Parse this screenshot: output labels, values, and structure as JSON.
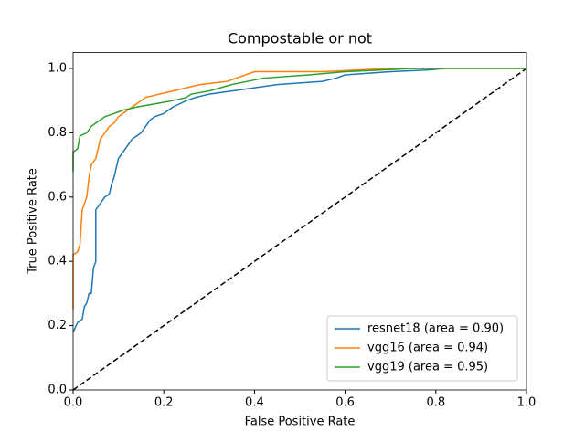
{
  "chart_data": {
    "type": "line",
    "title": "Compostable or not",
    "x_label": "False Positive Rate",
    "y_label": "True Positive Rate",
    "xlim": [
      0,
      1
    ],
    "ylim": [
      0,
      1.05
    ],
    "xticks": [
      {
        "value": 0,
        "label": "0.0"
      },
      {
        "value": 0.2,
        "label": "0.2"
      },
      {
        "value": 0.4,
        "label": "0.4"
      },
      {
        "value": 0.6,
        "label": "0.6"
      },
      {
        "value": 0.8,
        "label": "0.8"
      },
      {
        "value": 1,
        "label": "1.0"
      }
    ],
    "yticks": [
      {
        "value": 0,
        "label": "0.0"
      },
      {
        "value": 0.2,
        "label": "0.2"
      },
      {
        "value": 0.4,
        "label": "0.4"
      },
      {
        "value": 0.6,
        "label": "0.6"
      },
      {
        "value": 0.8,
        "label": "0.8"
      },
      {
        "value": 1,
        "label": "1.0"
      }
    ],
    "legend": "lower right",
    "diagonal": {
      "x": [
        0,
        1
      ],
      "values": [
        0,
        1
      ],
      "color": "#000000"
    },
    "series": [
      {
        "name": "resnet18 (area = 0.90)",
        "color": "#1f77b4",
        "x": [
          0,
          0.01,
          0.02,
          0.025,
          0.03,
          0.035,
          0.04,
          0.045,
          0.05,
          0.05,
          0.06,
          0.07,
          0.08,
          0.085,
          0.09,
          0.095,
          0.1,
          0.11,
          0.12,
          0.13,
          0.14,
          0.15,
          0.16,
          0.17,
          0.18,
          0.2,
          0.22,
          0.25,
          0.27,
          0.3,
          0.35,
          0.4,
          0.45,
          0.55,
          0.58,
          0.6,
          0.7,
          0.78,
          0.82
        ],
        "values": [
          0.18,
          0.21,
          0.22,
          0.26,
          0.27,
          0.3,
          0.3,
          0.38,
          0.4,
          0.56,
          0.58,
          0.6,
          0.61,
          0.64,
          0.66,
          0.69,
          0.72,
          0.74,
          0.76,
          0.78,
          0.79,
          0.8,
          0.82,
          0.84,
          0.85,
          0.86,
          0.88,
          0.9,
          0.91,
          0.92,
          0.93,
          0.94,
          0.95,
          0.96,
          0.97,
          0.98,
          0.99,
          0.995,
          1.0
        ]
      },
      {
        "name": "vgg16 (area = 0.94)",
        "color": "#ff7f0e",
        "x": [
          0,
          0,
          0.01,
          0.015,
          0.02,
          0.03,
          0.035,
          0.04,
          0.05,
          0.055,
          0.06,
          0.07,
          0.08,
          0.09,
          0.1,
          0.12,
          0.14,
          0.16,
          0.19,
          0.22,
          0.25,
          0.28,
          0.34,
          0.4,
          0.55,
          0.7,
          1
        ],
        "values": [
          0.25,
          0.42,
          0.43,
          0.45,
          0.56,
          0.6,
          0.66,
          0.7,
          0.72,
          0.75,
          0.78,
          0.8,
          0.82,
          0.83,
          0.85,
          0.87,
          0.89,
          0.91,
          0.92,
          0.93,
          0.94,
          0.95,
          0.96,
          0.99,
          0.99,
          1.0,
          1.0
        ]
      },
      {
        "name": "vgg19 (area = 0.95)",
        "color": "#2ca02c",
        "x": [
          0,
          0,
          0.01,
          0.015,
          0.03,
          0.04,
          0.05,
          0.06,
          0.07,
          0.09,
          0.11,
          0.14,
          0.18,
          0.22,
          0.25,
          0.26,
          0.3,
          0.35,
          0.42,
          0.52,
          0.6,
          0.75,
          1
        ],
        "values": [
          0.68,
          0.74,
          0.75,
          0.79,
          0.8,
          0.82,
          0.83,
          0.84,
          0.85,
          0.86,
          0.87,
          0.88,
          0.89,
          0.9,
          0.91,
          0.92,
          0.93,
          0.95,
          0.97,
          0.98,
          0.99,
          1.0,
          1.0
        ]
      }
    ]
  }
}
